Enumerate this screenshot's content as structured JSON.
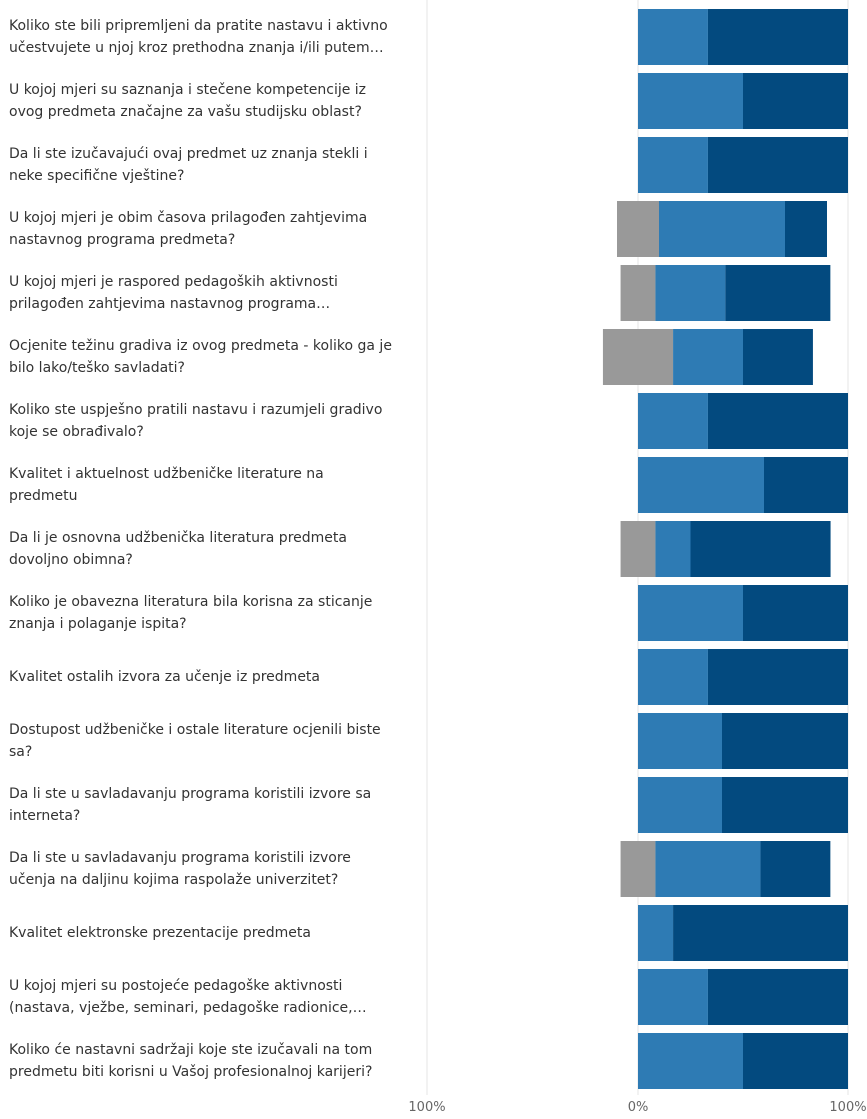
{
  "chart_data": {
    "type": "bar",
    "orientation": "horizontal",
    "stacked": "diverging",
    "categories": [
      "Koliko ste bili pripremljeni da pratite nastavu i aktivno učestvujete u njoj kroz prethodna znanja i/ili putem…",
      "U kojoj mjeri su saznanja i stečene kompetencije iz ovog predmeta značajne za vašu studijsku oblast?",
      "Da li ste izučavajući ovaj predmet uz znanja stekli i neke specifične vještine?",
      "U kojoj mjeri je obim časova prilagođen zahtjevima nastavnog programa predmeta?",
      "U kojoj mjeri je raspored pedagoških aktivnosti prilagođen zahtjevima nastavnog programa…",
      "Ocjenite težinu gradiva iz ovog predmeta - koliko ga je bilo lako/teško savladati?",
      "Koliko ste uspješno pratili nastavu i razumjeli gradivo koje se obrađivalo?",
      "Kvalitet i aktuelnost udžbeničke literature na predmetu",
      "Da li je osnovna udžbenička literatura predmeta dovoljno obimna?",
      "Koliko je obavezna literatura bila korisna za sticanje znanja i polaganje ispita?",
      "Kvalitet ostalih izvora za učenje iz predmeta",
      "Dostupost udžbeničke i ostale literature ocjenili biste sa?",
      "Da li ste u savladavanju programa koristili izvore sa interneta?",
      "Da li ste u savladavanju programa koristili izvore učenja na daljinu kojima raspolaže univerzitet?",
      "Kvalitet elektronske prezentacije predmeta",
      "U kojoj mjeri su postojeće pedagoške aktivnosti (nastava, vježbe, seminari, pedagoške radionice,…",
      "Koliko će nastavni sadržaji koje ste izučavali na tom predmetu biti korisni u Vašoj profesionalnoj karijeri?"
    ],
    "series": [
      {
        "color": "#999999",
        "values": [
          0,
          0,
          0,
          -10,
          -8.3,
          -16.7,
          0,
          0,
          -8.3,
          0,
          0,
          0,
          0,
          -8.3,
          0,
          0,
          0
        ]
      },
      {
        "color": "#2e7bb4",
        "values": [
          33.3,
          50,
          33.3,
          60,
          33.3,
          33.3,
          33.3,
          60,
          16.7,
          50,
          33.3,
          40,
          40,
          50,
          16.7,
          33.3,
          50
        ]
      },
      {
        "color": "#034a7f",
        "values": [
          66.7,
          50,
          66.7,
          20,
          50,
          33.3,
          66.7,
          40,
          66.7,
          50,
          66.7,
          60,
          60,
          33.3,
          83.3,
          66.7,
          50
        ]
      }
    ],
    "series_offsets": [
      0,
      10,
      8.3,
      16.7,
      8.3,
      8.3
    ],
    "offset_rows": [
      3,
      4,
      5,
      8,
      13
    ],
    "xlim": [
      -100,
      100
    ],
    "x_ticks": [
      "100%",
      "0%",
      "100%"
    ],
    "grid": true,
    "legend": "none"
  }
}
